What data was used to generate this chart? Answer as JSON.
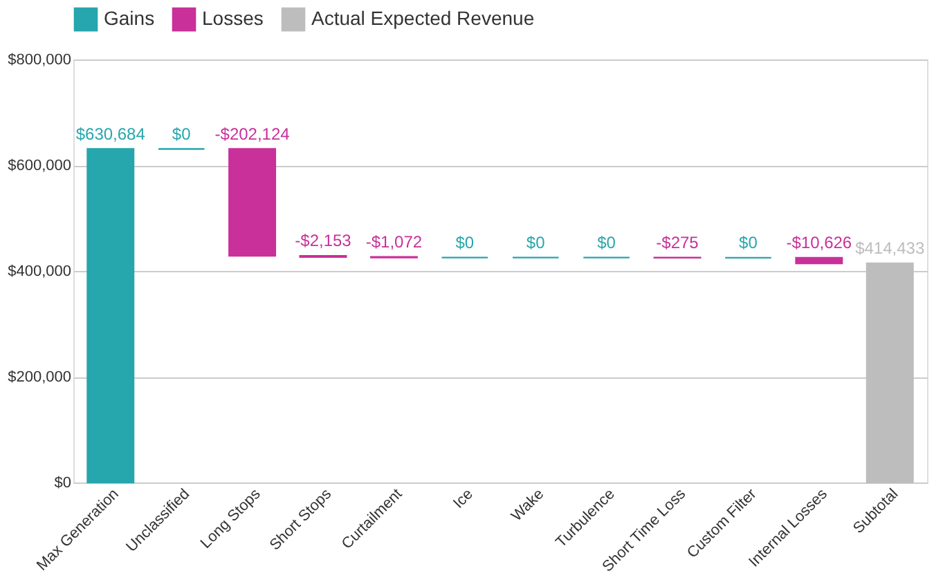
{
  "chart_data": {
    "type": "bar",
    "categories": [
      "Max Generation",
      "Unclassified",
      "Long Stops",
      "Short Stops",
      "Curtailment",
      "Ice",
      "Wake",
      "Turbulence",
      "Short Time Loss",
      "Custom Filter",
      "Internal Losses",
      "Subtotal"
    ],
    "series": [
      {
        "name": "Gains",
        "color": "#26a6ad",
        "base": [
          0,
          630684,
          null,
          null,
          null,
          425335,
          425335,
          425335,
          null,
          425060,
          null,
          null
        ],
        "values": [
          630684,
          0,
          null,
          null,
          null,
          0,
          0,
          0,
          null,
          0,
          null,
          null
        ],
        "value_labels": [
          "$630,684",
          "$0",
          null,
          null,
          null,
          "$0",
          "$0",
          "$0",
          null,
          "$0",
          null,
          null
        ]
      },
      {
        "name": "Losses",
        "color": "#c9309a",
        "base": [
          null,
          null,
          630684,
          428560,
          426407,
          null,
          null,
          null,
          425335,
          null,
          425060,
          null
        ],
        "values": [
          null,
          null,
          -202124,
          -2153,
          -1072,
          null,
          null,
          null,
          -275,
          null,
          -10626,
          null
        ],
        "value_labels": [
          null,
          null,
          "-$202,124",
          "-$2,153",
          "-$1,072",
          null,
          null,
          null,
          "-$275",
          null,
          "-$10,626",
          null
        ]
      },
      {
        "name": "Actual Expected Revenue",
        "color": "#bdbdbd",
        "base": [
          null,
          null,
          null,
          null,
          null,
          null,
          null,
          null,
          null,
          null,
          null,
          0
        ],
        "values": [
          null,
          null,
          null,
          null,
          null,
          null,
          null,
          null,
          null,
          null,
          null,
          414433
        ],
        "value_labels": [
          null,
          null,
          null,
          null,
          null,
          null,
          null,
          null,
          null,
          null,
          null,
          "$414,433"
        ]
      }
    ],
    "ylim": [
      0,
      800000
    ],
    "yticks": [
      {
        "value": 0,
        "label": "$0"
      },
      {
        "value": 200000,
        "label": "$200,000"
      },
      {
        "value": 400000,
        "label": "$400,000"
      },
      {
        "value": 600000,
        "label": "$600,000"
      },
      {
        "value": 800000,
        "label": "$800,000"
      }
    ],
    "grid": "y",
    "legend": "top"
  }
}
